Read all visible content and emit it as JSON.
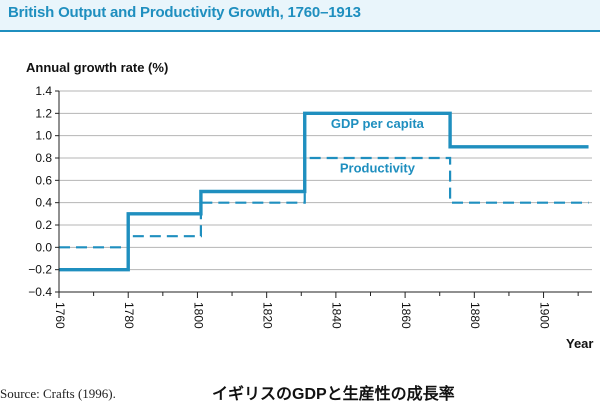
{
  "header": {
    "title": "British Output and Productivity Growth, 1760–1913"
  },
  "chart_data": {
    "type": "line",
    "step": true,
    "ylabel": "Annual growth rate (%)",
    "xlabel": "Year",
    "xlim": [
      1760,
      1913
    ],
    "ylim": [
      -0.4,
      1.4
    ],
    "x_ticks": [
      1760,
      1780,
      1800,
      1820,
      1840,
      1860,
      1880,
      1900
    ],
    "x_tick_labels": [
      "1760",
      "1780",
      "1800",
      "1820",
      "1840",
      "1860",
      "1880",
      "1900"
    ],
    "y_ticks": [
      -0.4,
      -0.2,
      0.0,
      0.2,
      0.4,
      0.6,
      0.8,
      1.0,
      1.2,
      1.4
    ],
    "y_tick_labels": [
      "−0.4",
      "−0.2",
      "0.0",
      "0.2",
      "0.4",
      "0.6",
      "0.8",
      "1.0",
      "1.2",
      "1.4"
    ],
    "grid": "horizontal",
    "series": [
      {
        "name": "GDP per capita",
        "style": "solid",
        "color": "#1f8fbf",
        "segments": [
          {
            "from": 1760,
            "to": 1780,
            "value": -0.2
          },
          {
            "from": 1780,
            "to": 1801,
            "value": 0.3
          },
          {
            "from": 1801,
            "to": 1831,
            "value": 0.5
          },
          {
            "from": 1831,
            "to": 1873,
            "value": 1.2
          },
          {
            "from": 1873,
            "to": 1913,
            "value": 0.9
          }
        ]
      },
      {
        "name": "Productivity",
        "style": "dashed",
        "color": "#1f8fbf",
        "segments": [
          {
            "from": 1760,
            "to": 1780,
            "value": 0.0
          },
          {
            "from": 1780,
            "to": 1801,
            "value": 0.1
          },
          {
            "from": 1801,
            "to": 1831,
            "value": 0.4
          },
          {
            "from": 1831,
            "to": 1873,
            "value": 0.8
          },
          {
            "from": 1873,
            "to": 1913,
            "value": 0.4
          }
        ]
      }
    ],
    "annotations": [
      {
        "text": "GDP per capita",
        "x": 1852,
        "y": 1.07
      },
      {
        "text": "Productivity",
        "x": 1852,
        "y": 0.67
      }
    ]
  },
  "footer": {
    "source": "Source: Crafts (1996).",
    "caption_jp": "イギリスのGDPと生産性の成長率"
  },
  "colors": {
    "accent": "#1f8fbf",
    "grid": "#b5b5b5",
    "axis": "#222222"
  }
}
